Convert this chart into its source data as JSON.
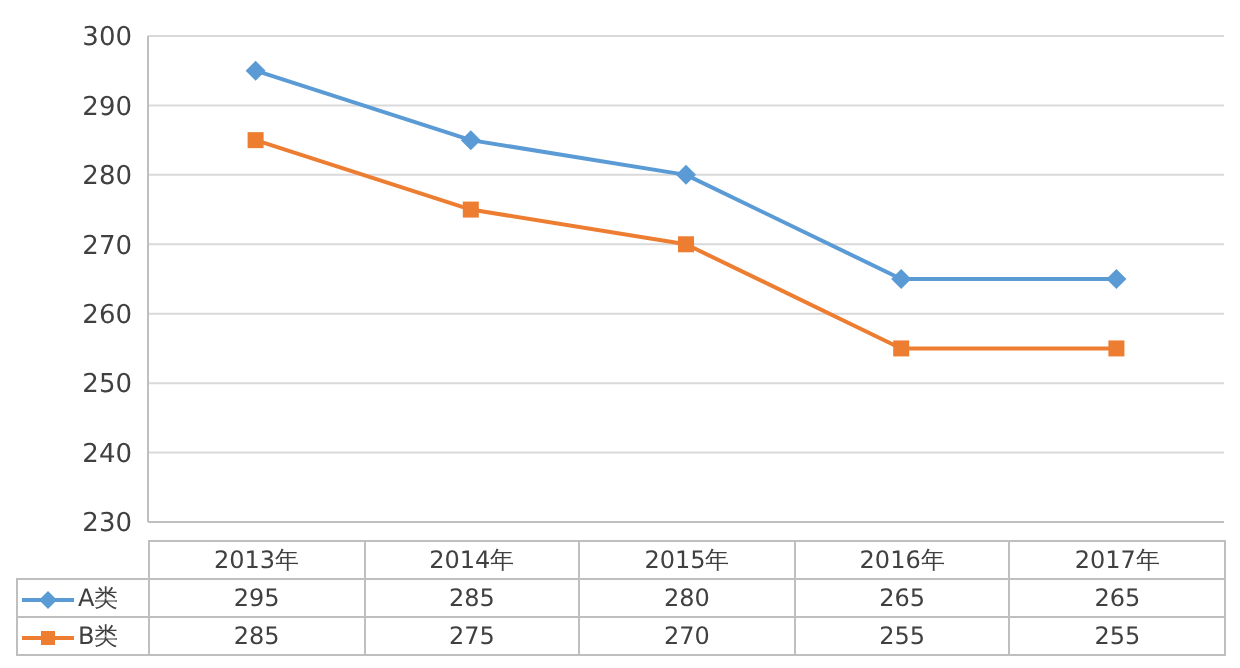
{
  "chart_data": {
    "type": "line",
    "categories": [
      "2013年",
      "2014年",
      "2015年",
      "2016年",
      "2017年"
    ],
    "series": [
      {
        "name": "A类",
        "color": "#5b9bd5",
        "marker": "diamond",
        "values": [
          295,
          285,
          280,
          265,
          265
        ]
      },
      {
        "name": "B类",
        "color": "#ed7d31",
        "marker": "square",
        "values": [
          285,
          275,
          270,
          255,
          255
        ]
      }
    ],
    "ylim": [
      230,
      300
    ],
    "yticks": [
      230,
      240,
      250,
      260,
      270,
      280,
      290,
      300
    ],
    "grid": "y",
    "data_labels": true,
    "legend": "bottom"
  }
}
